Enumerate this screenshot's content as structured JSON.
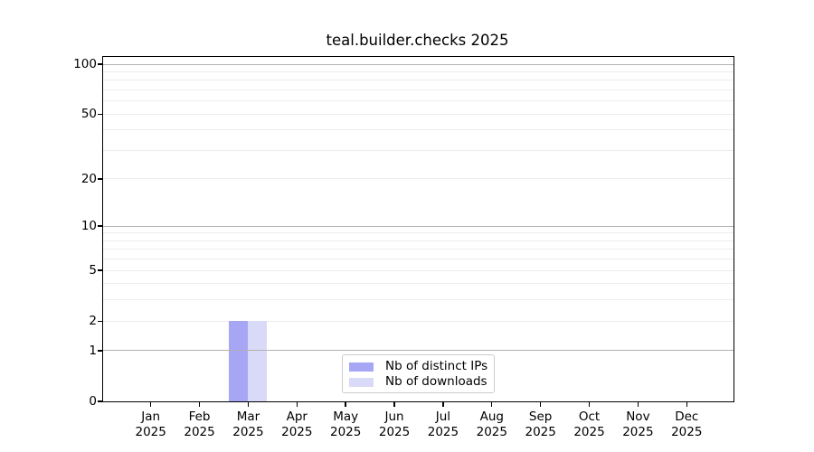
{
  "title": "teal.builder.checks 2025",
  "chart_data": {
    "type": "bar",
    "categories": [
      "Jan 2025",
      "Feb 2025",
      "Mar 2025",
      "Apr 2025",
      "May 2025",
      "Jun 2025",
      "Jul 2025",
      "Aug 2025",
      "Sep 2025",
      "Oct 2025",
      "Nov 2025",
      "Dec 2025"
    ],
    "series": [
      {
        "name": "Nb of distinct IPs",
        "color": "#a6a6f5",
        "values": [
          0,
          0,
          2,
          0,
          0,
          0,
          0,
          0,
          0,
          0,
          0,
          0
        ]
      },
      {
        "name": "Nb of downloads",
        "color": "#d9d9f8",
        "values": [
          0,
          0,
          2,
          0,
          0,
          0,
          0,
          0,
          0,
          0,
          0,
          0
        ]
      }
    ],
    "title": "teal.builder.checks 2025",
    "xlabel": "",
    "ylabel": "",
    "yscale": "log1p",
    "ylim": [
      0,
      112
    ],
    "ytick_labels": [
      "0",
      "1",
      "2",
      "5",
      "10",
      "20",
      "50",
      "100"
    ],
    "ytick_values": [
      0,
      1,
      2,
      5,
      10,
      20,
      50,
      100
    ],
    "grid_major_values": [
      1,
      10,
      100
    ],
    "grid_minor_values": [
      2,
      3,
      4,
      5,
      6,
      7,
      8,
      9,
      20,
      30,
      40,
      50,
      60,
      70,
      80,
      90
    ],
    "grid": "on",
    "legend_position": "bottom-center"
  },
  "legend": {
    "items": [
      {
        "label": "Nb of distinct IPs",
        "color": "#a6a6f5"
      },
      {
        "label": "Nb of downloads",
        "color": "#d9d9f8"
      }
    ]
  },
  "colors": {
    "spine": "#000000",
    "grid_major": "#b2b2b2",
    "grid_minor": "#ececec",
    "legend_border": "#cccccc"
  }
}
